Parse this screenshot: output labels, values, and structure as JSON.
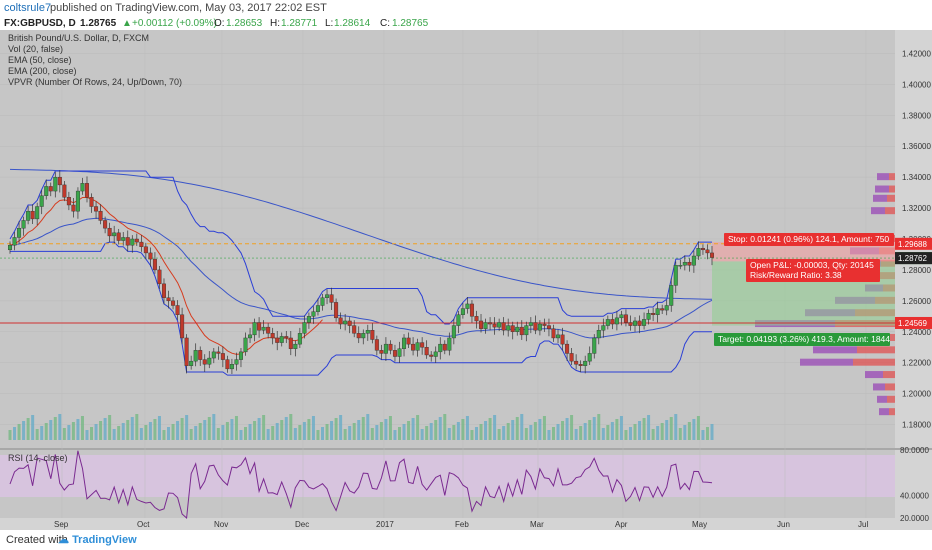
{
  "header": {
    "user": "coltsrule7",
    "published": "published on TradingView.com, May 03, 2017 22:02 EST"
  },
  "quote": {
    "symbol": "FX:GBPUSD, D",
    "price": "1.28765",
    "change": "+0.00112 (+0.09%)",
    "open_label": "O:",
    "open": "1.28653",
    "high_label": "H:",
    "high": "1.28771",
    "low_label": "L:",
    "low": "1.28614",
    "close_label": "C:",
    "close": "1.28765"
  },
  "legend": [
    "British Pound/U.S. Dollar, D, FXCM",
    "Vol (20, false)",
    "EMA (50, close)",
    "EMA (200, close)",
    "VPVR (Number Of Rows, 24, Up/Down, 70)"
  ],
  "rsi_label": "RSI (14, close)",
  "footer": {
    "created": "Created with",
    "brand": "TradingView"
  },
  "colors": {
    "panel_bg": "#c8c8c8",
    "up": "#3aa54a",
    "down": "#c0392b",
    "ema": "#2b3fd6",
    "ema_short": "#d63b1e",
    "orange_line": "#f0a020",
    "rsi_line": "#7a2a90",
    "rsi_band": "#d7bfe0"
  },
  "chart_data": {
    "type": "candlestick",
    "symbol": "GBPUSD",
    "timeframe": "D",
    "x_ticks": [
      "Sep",
      "Oct",
      "Nov",
      "Dec",
      "2017",
      "Feb",
      "Mar",
      "Apr",
      "May",
      "Jun",
      "Jul"
    ],
    "y_ticks": [
      "1.42000",
      "1.40000",
      "1.38000",
      "1.36000",
      "1.34000",
      "1.32000",
      "1.30000",
      "1.28000",
      "1.26000",
      "1.24000",
      "1.22000",
      "1.20000",
      "1.18000"
    ],
    "ylim": [
      1.17,
      1.43
    ],
    "price_tags": [
      {
        "text": "1.29688",
        "value": 1.29688,
        "color": "#e83030"
      },
      {
        "text": "1.28765",
        "value": 1.28765,
        "color": "#3aa54a"
      },
      {
        "text": "1.28762",
        "value": 1.28762,
        "color": "#222222"
      },
      {
        "text": "1.24569",
        "value": 1.24569,
        "color": "#e83030"
      }
    ],
    "position": {
      "stop": "Stop: 0.01241 (0.96%) 124.1, Amount: 750",
      "open_pl": "Open P&L: -0.00003, Qty: 20145",
      "rr": "Risk/Reward Ratio: 3.38",
      "target": "Target: 0.04193 (3.26%) 419.3, Amount: 1844",
      "entry": 1.2855,
      "stop_level": 1.298,
      "target_level": 1.244
    },
    "closes": [
      1.296,
      1.301,
      1.307,
      1.312,
      1.318,
      1.313,
      1.321,
      1.328,
      1.334,
      1.331,
      1.34,
      1.335,
      1.327,
      1.322,
      1.318,
      1.331,
      1.336,
      1.327,
      1.321,
      1.318,
      1.312,
      1.307,
      1.302,
      1.304,
      1.299,
      1.301,
      1.296,
      1.3,
      1.298,
      1.295,
      1.291,
      1.287,
      1.28,
      1.271,
      1.262,
      1.26,
      1.257,
      1.251,
      1.236,
      1.218,
      1.221,
      1.228,
      1.222,
      1.219,
      1.223,
      1.227,
      1.226,
      1.222,
      1.216,
      1.219,
      1.222,
      1.227,
      1.236,
      1.238,
      1.246,
      1.241,
      1.243,
      1.239,
      1.236,
      1.233,
      1.237,
      1.236,
      1.229,
      1.232,
      1.239,
      1.246,
      1.25,
      1.253,
      1.257,
      1.262,
      1.264,
      1.259,
      1.249,
      1.245,
      1.247,
      1.244,
      1.239,
      1.236,
      1.239,
      1.241,
      1.235,
      1.228,
      1.226,
      1.232,
      1.228,
      1.224,
      1.229,
      1.236,
      1.232,
      1.228,
      1.233,
      1.23,
      1.225,
      1.224,
      1.227,
      1.232,
      1.228,
      1.236,
      1.244,
      1.251,
      1.255,
      1.258,
      1.25,
      1.247,
      1.242,
      1.246,
      1.245,
      1.243,
      1.246,
      1.241,
      1.244,
      1.24,
      1.243,
      1.238,
      1.244,
      1.246,
      1.241,
      1.245,
      1.244,
      1.242,
      1.236,
      1.238,
      1.232,
      1.226,
      1.221,
      1.219,
      1.218,
      1.221,
      1.226,
      1.236,
      1.241,
      1.244,
      1.248,
      1.245,
      1.249,
      1.251,
      1.246,
      1.244,
      1.247,
      1.244,
      1.248,
      1.252,
      1.251,
      1.255,
      1.254,
      1.257,
      1.27,
      1.283,
      1.283,
      1.285,
      1.283,
      1.289,
      1.294,
      1.293,
      1.291,
      1.288
    ]
  }
}
